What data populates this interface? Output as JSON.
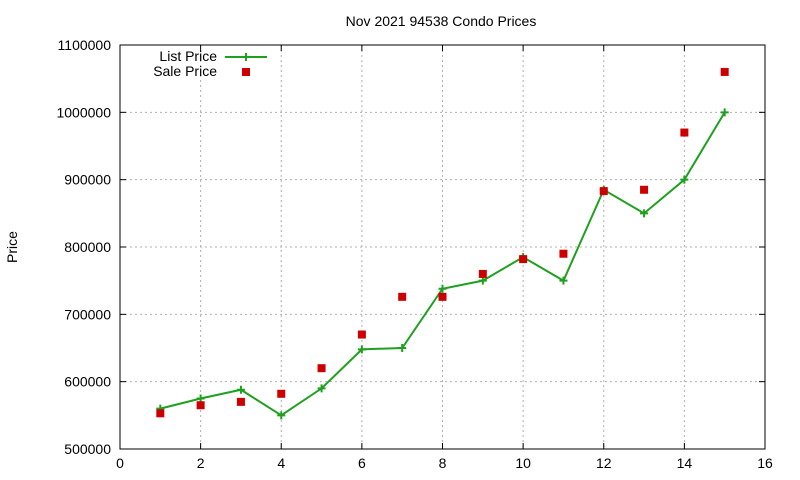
{
  "chart_data": {
    "type": "line",
    "title": "Nov 2021 94538 Condo Prices",
    "xlabel": "",
    "ylabel": "Price",
    "xlim": [
      0,
      16
    ],
    "ylim": [
      500000,
      1100000
    ],
    "x_ticks": [
      0,
      2,
      4,
      6,
      8,
      10,
      12,
      14,
      16
    ],
    "y_ticks": [
      500000,
      600000,
      700000,
      800000,
      900000,
      1000000,
      1100000
    ],
    "grid": true,
    "legend_position": "top-left",
    "series": [
      {
        "name": "List Price",
        "style": "line-with-plus-markers",
        "color": "#1fa01f",
        "x": [
          1,
          2,
          3,
          4,
          5,
          6,
          7,
          8,
          9,
          10,
          11,
          12,
          13,
          14,
          15
        ],
        "y": [
          560000,
          575000,
          588000,
          550000,
          590000,
          648000,
          650000,
          738000,
          750000,
          785000,
          750000,
          885000,
          850000,
          900000,
          1000000
        ]
      },
      {
        "name": "Sale Price",
        "style": "square-markers",
        "color": "#cc0000",
        "x": [
          1,
          2,
          3,
          4,
          5,
          6,
          7,
          8,
          9,
          10,
          11,
          12,
          13,
          14,
          15
        ],
        "y": [
          553000,
          565000,
          570000,
          582000,
          620000,
          670000,
          726000,
          726000,
          760000,
          782000,
          790000,
          883000,
          885000,
          970000,
          1060000
        ]
      }
    ]
  }
}
